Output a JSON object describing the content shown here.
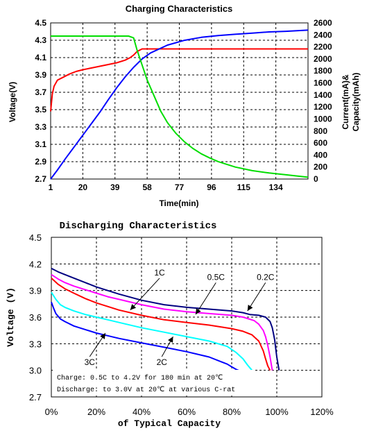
{
  "chart_data": [
    {
      "type": "line",
      "title": "Charging Characteristics",
      "xlabel": "Time(min)",
      "ylabel": "Voltage(V)",
      "y2label_line1": "Current(mA)&",
      "y2label_line2": "Capacity(mAh)",
      "x_ticks": [
        "1",
        "20",
        "39",
        "58",
        "77",
        "96",
        "115",
        "134"
      ],
      "y_ticks": [
        "4.5",
        "4.3",
        "4.1",
        "3.9",
        "3.7",
        "3.5",
        "3.3",
        "3.1",
        "2.9",
        "2.7"
      ],
      "y2_ticks": [
        "2600",
        "2400",
        "2200",
        "2000",
        "1800",
        "1600",
        "1400",
        "1200",
        "1000",
        "800",
        "600",
        "400",
        "200",
        "0"
      ],
      "xlim": [
        1,
        153
      ],
      "ylim": [
        2.7,
        4.5
      ],
      "y2lim": [
        0,
        2600
      ],
      "grid": true,
      "series": [
        {
          "color": "#ff0000",
          "axis": "left",
          "x": [
            1,
            2,
            3,
            5,
            8,
            12,
            16,
            20,
            25,
            30,
            35,
            40,
            45,
            48,
            50,
            52,
            55,
            60,
            80,
            100,
            120,
            140,
            153
          ],
          "y": [
            3.48,
            3.68,
            3.77,
            3.84,
            3.87,
            3.91,
            3.94,
            3.96,
            3.98,
            4.0,
            4.02,
            4.04,
            4.07,
            4.1,
            4.13,
            4.17,
            4.2,
            4.2,
            4.2,
            4.2,
            4.2,
            4.2,
            4.2
          ]
        },
        {
          "color": "#0000ff",
          "axis": "right",
          "x": [
            1,
            5,
            10,
            15,
            20,
            25,
            30,
            35,
            40,
            45,
            50,
            55,
            60,
            70,
            80,
            90,
            100,
            110,
            120,
            130,
            140,
            153
          ],
          "y": [
            0,
            150,
            350,
            540,
            730,
            920,
            1110,
            1320,
            1520,
            1700,
            1860,
            2000,
            2100,
            2230,
            2310,
            2360,
            2390,
            2410,
            2430,
            2450,
            2460,
            2480
          ]
        },
        {
          "color": "#00dd00",
          "axis": "right",
          "x": [
            1,
            10,
            20,
            30,
            40,
            47,
            50,
            52,
            55,
            58,
            62,
            66,
            70,
            75,
            80,
            85,
            90,
            95,
            100,
            110,
            120,
            130,
            140,
            153
          ],
          "y": [
            2380,
            2380,
            2380,
            2380,
            2380,
            2380,
            2350,
            2150,
            1900,
            1650,
            1390,
            1130,
            940,
            760,
            620,
            510,
            420,
            350,
            290,
            200,
            140,
            100,
            70,
            30
          ]
        }
      ]
    },
    {
      "type": "line",
      "title": "Discharging Characteristics",
      "xlabel": "of Typical Capacity",
      "ylabel": "Voltage (V)",
      "x_ticks": [
        "0%",
        "20%",
        "40%",
        "60%",
        "80%",
        "100%",
        "120%"
      ],
      "y_ticks": [
        "4.5",
        "4.2",
        "3.9",
        "3.6",
        "3.3",
        "3.0",
        "2.7"
      ],
      "xlim": [
        0,
        120
      ],
      "ylim": [
        2.7,
        4.5
      ],
      "grid": true,
      "notes": [
        "Charge: 0.5C to 4.2V for 180 min at 20℃",
        "Discharge: to 3.0V at 20℃ at various C-rat"
      ],
      "annotations": [
        {
          "text": "1C",
          "tx": 48,
          "ty": 4.07,
          "ax": 35,
          "ay": 3.68
        },
        {
          "text": "0.5C",
          "tx": 73,
          "ty": 4.02,
          "ax": 64,
          "ay": 3.63
        },
        {
          "text": "0.2C",
          "tx": 95,
          "ty": 4.02,
          "ax": 87,
          "ay": 3.67
        },
        {
          "text": "3C",
          "tx": 17,
          "ty": 3.06,
          "ax": 24,
          "ay": 3.42
        },
        {
          "text": "2C",
          "tx": 49,
          "ty": 3.06,
          "ax": 54,
          "ay": 3.38
        }
      ],
      "series": [
        {
          "color": "#000080",
          "x": [
            0,
            3,
            6,
            10,
            15,
            20,
            25,
            30,
            40,
            50,
            60,
            70,
            80,
            85,
            88,
            92,
            95,
            97,
            98,
            99,
            100,
            101
          ],
          "y": [
            4.15,
            4.11,
            4.08,
            4.04,
            3.99,
            3.94,
            3.9,
            3.86,
            3.79,
            3.74,
            3.71,
            3.69,
            3.67,
            3.65,
            3.63,
            3.62,
            3.6,
            3.55,
            3.48,
            3.35,
            3.15,
            3.0
          ]
        },
        {
          "color": "#ff00ff",
          "x": [
            0,
            3,
            6,
            10,
            15,
            20,
            25,
            30,
            40,
            50,
            60,
            70,
            80,
            85,
            90,
            92,
            94,
            95,
            96,
            97,
            98
          ],
          "y": [
            4.08,
            4.03,
            3.99,
            3.95,
            3.91,
            3.87,
            3.83,
            3.8,
            3.74,
            3.69,
            3.66,
            3.64,
            3.62,
            3.6,
            3.56,
            3.52,
            3.45,
            3.38,
            3.28,
            3.15,
            3.0
          ]
        },
        {
          "color": "#ff0000",
          "x": [
            0,
            3,
            6,
            10,
            15,
            20,
            25,
            30,
            40,
            50,
            60,
            70,
            80,
            85,
            89,
            92,
            94,
            95,
            96,
            97
          ],
          "y": [
            4.04,
            3.97,
            3.92,
            3.87,
            3.81,
            3.76,
            3.72,
            3.68,
            3.62,
            3.57,
            3.54,
            3.51,
            3.47,
            3.44,
            3.4,
            3.33,
            3.22,
            3.13,
            3.05,
            3.0
          ]
        },
        {
          "color": "#00ffff",
          "x": [
            0,
            2,
            4,
            6,
            10,
            15,
            20,
            25,
            30,
            40,
            50,
            60,
            70,
            78,
            82,
            85,
            87,
            88,
            89
          ],
          "y": [
            3.88,
            3.8,
            3.74,
            3.71,
            3.67,
            3.63,
            3.6,
            3.57,
            3.54,
            3.48,
            3.43,
            3.38,
            3.33,
            3.27,
            3.2,
            3.13,
            3.06,
            3.03,
            3.0
          ]
        },
        {
          "color": "#0000ff",
          "x": [
            0,
            1,
            2,
            4,
            6,
            10,
            15,
            20,
            25,
            30,
            40,
            50,
            60,
            70,
            75,
            78,
            80,
            82,
            83
          ],
          "y": [
            3.77,
            3.7,
            3.64,
            3.58,
            3.55,
            3.5,
            3.46,
            3.42,
            3.39,
            3.36,
            3.31,
            3.26,
            3.21,
            3.15,
            3.1,
            3.07,
            3.04,
            3.01,
            3.0
          ]
        }
      ]
    }
  ]
}
